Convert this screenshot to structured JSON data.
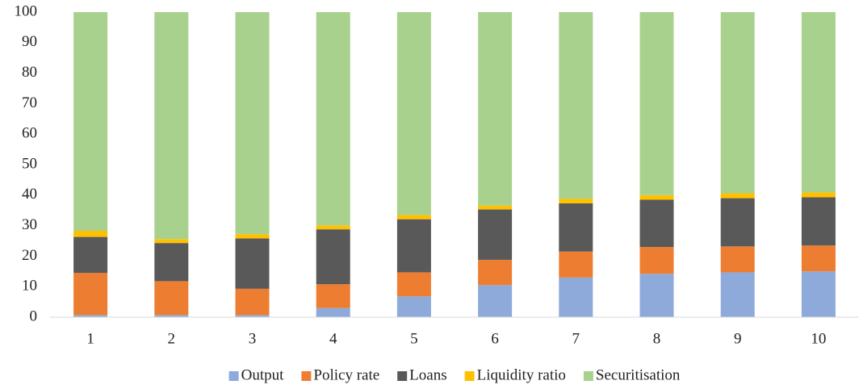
{
  "chart_data": {
    "type": "stacked_bar",
    "categories": [
      "1",
      "2",
      "3",
      "4",
      "5",
      "6",
      "7",
      "8",
      "9",
      "10"
    ],
    "series": [
      {
        "name": "Output",
        "color": "#8eaadb",
        "values": [
          0.7,
          0.7,
          0.7,
          3.0,
          6.8,
          10.5,
          13.0,
          14.2,
          14.7,
          15.0
        ]
      },
      {
        "name": "Policy rate",
        "color": "#ed7d31",
        "values": [
          13.8,
          11.1,
          8.6,
          7.8,
          7.9,
          8.3,
          8.5,
          8.8,
          8.5,
          8.5
        ]
      },
      {
        "name": "Loans",
        "color": "#595959",
        "values": [
          11.8,
          12.5,
          16.5,
          18.0,
          17.4,
          16.5,
          15.8,
          15.5,
          15.8,
          15.8
        ]
      },
      {
        "name": "Liquidity ratio",
        "color": "#ffc000",
        "values": [
          2.0,
          1.3,
          1.4,
          1.3,
          1.4,
          1.3,
          1.5,
          1.5,
          1.6,
          1.6
        ]
      },
      {
        "name": "Securitisation",
        "color": "#a9d18e",
        "values": [
          71.7,
          74.4,
          72.8,
          69.9,
          66.5,
          63.4,
          61.2,
          60.0,
          59.4,
          59.1
        ]
      }
    ],
    "ylim": [
      0,
      100
    ],
    "yticks": [
      0,
      10,
      20,
      30,
      40,
      50,
      60,
      70,
      80,
      90,
      100
    ],
    "grid": false,
    "legend": "bottom"
  }
}
